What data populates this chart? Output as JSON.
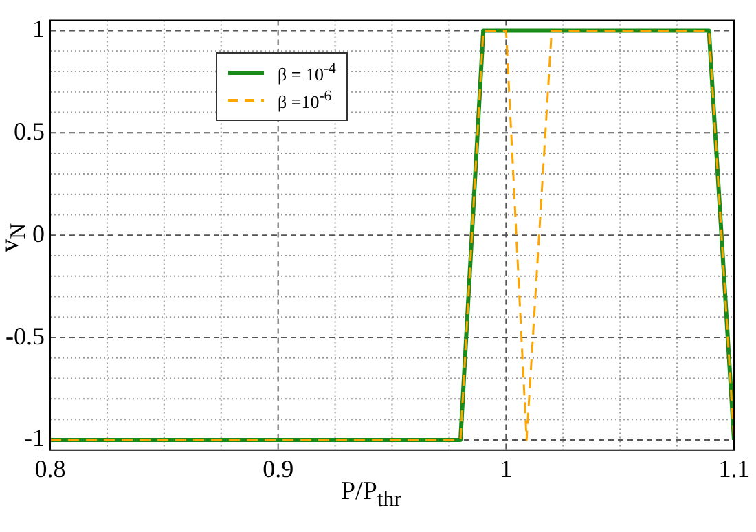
{
  "chart_data": {
    "type": "line",
    "xlabel": "P/P$_{thr}$",
    "ylabel": "v$_{N}$",
    "xlim": [
      0.8,
      1.1
    ],
    "ylim": [
      -1.05,
      1.05
    ],
    "xticks": [
      0.8,
      {
        "value": 0.825,
        "label": null
      },
      {
        "value": 0.85,
        "label": null
      },
      {
        "value": 0.875,
        "label": null
      },
      0.9,
      {
        "value": 0.925,
        "label": null
      },
      {
        "value": 0.95,
        "label": null
      },
      {
        "value": 0.975,
        "label": null
      },
      1,
      {
        "value": 1.025,
        "label": null
      },
      {
        "value": 1.05,
        "label": null
      },
      {
        "value": 1.075,
        "label": null
      },
      1.1
    ],
    "yticks": [
      -1,
      {
        "value": -0.9,
        "label": null
      },
      {
        "value": -0.8,
        "label": null
      },
      {
        "value": -0.7,
        "label": null
      },
      {
        "value": -0.6,
        "label": null
      },
      -0.5,
      {
        "value": -0.4,
        "label": null
      },
      {
        "value": -0.3,
        "label": null
      },
      {
        "value": -0.2,
        "label": null
      },
      {
        "value": -0.1,
        "label": null
      },
      0,
      {
        "value": 0.1,
        "label": null
      },
      {
        "value": 0.2,
        "label": null
      },
      {
        "value": 0.3,
        "label": null
      },
      {
        "value": 0.4,
        "label": null
      },
      0.5,
      {
        "value": 0.6,
        "label": null
      },
      {
        "value": 0.7,
        "label": null
      },
      {
        "value": 0.8,
        "label": null
      },
      {
        "value": 0.9,
        "label": null
      },
      1
    ],
    "grid": true,
    "legend": "top left",
    "marker": "none",
    "series": [
      {
        "name": "β = 10$^{-4}$",
        "color": "#1a8a1a",
        "line_style": "solid",
        "x": [
          0.8,
          0.98,
          0.99,
          1.089,
          1.1
        ],
        "values": [
          -1,
          -1,
          1,
          1,
          -1
        ]
      },
      {
        "name": "β =10$^{-6}$",
        "color": "#ffa500",
        "line_style": "dashed",
        "x": [
          0.8,
          0.98,
          0.99,
          1.0,
          1.009,
          1.02,
          1.089,
          1.1
        ],
        "values": [
          -1,
          -1,
          1,
          1,
          -1,
          1,
          1,
          -1
        ]
      }
    ]
  }
}
